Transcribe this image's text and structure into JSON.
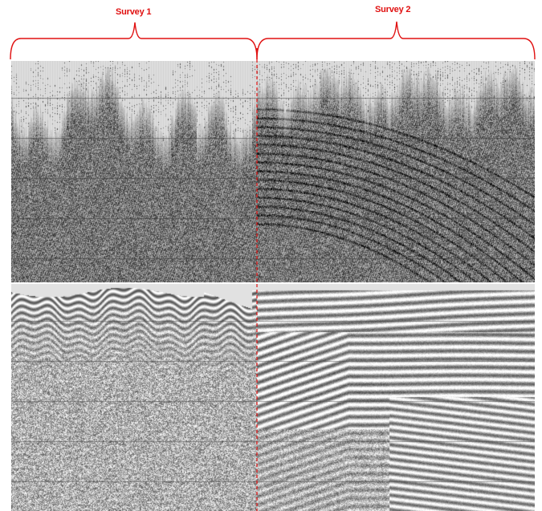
{
  "figure": {
    "labels": {
      "survey_1": "Survey 1",
      "survey_2": "Survey 2"
    },
    "colors": {
      "annotation": "#e01010",
      "trace_dark": "#141414",
      "background": "#ffffff",
      "grid": "#6a6a6a"
    },
    "panels": [
      {
        "name": "raw-seismic-section",
        "content": "unprocessed seismic traces"
      },
      {
        "name": "processed-seismic-section",
        "content": "processed seismic reflections"
      }
    ]
  }
}
